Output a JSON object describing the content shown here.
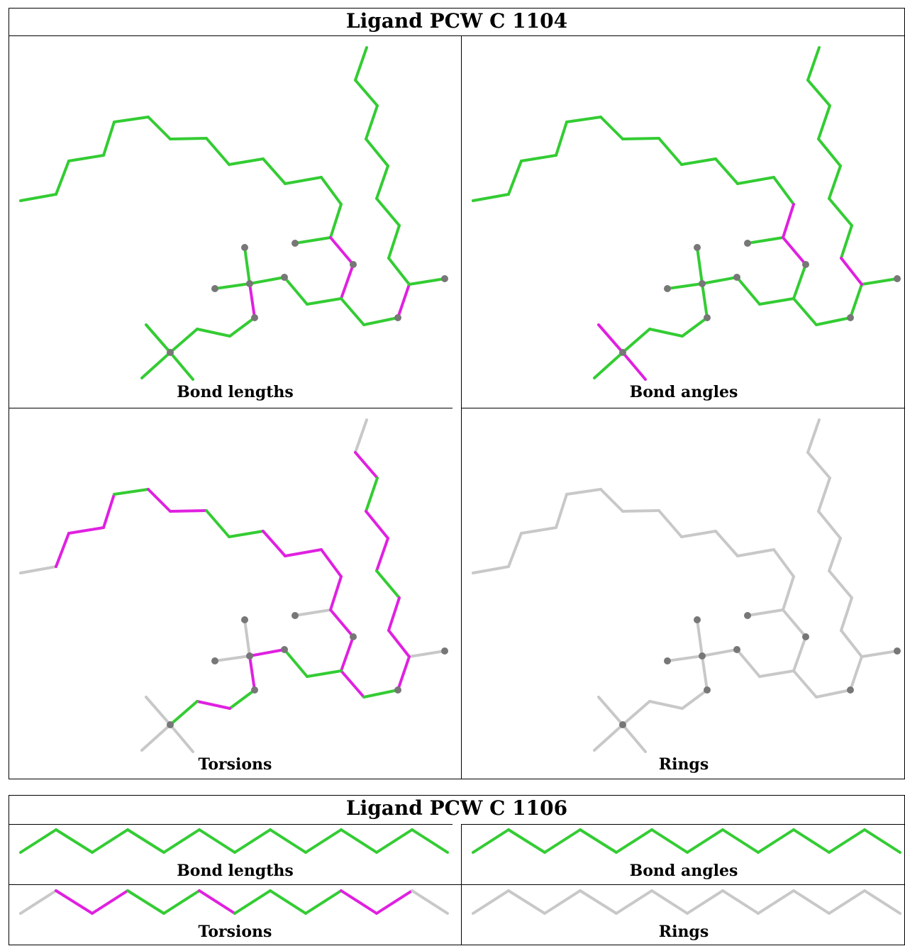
{
  "colors": {
    "ok": "#33cc33",
    "outlier": "#e020e0",
    "na": "#c8c8c8",
    "atom": "#777777"
  },
  "tables": [
    {
      "title": "Ligand PCW C 1104",
      "captions": [
        "Bond lengths",
        "Bond angles",
        "Torsions",
        "Rings"
      ]
    },
    {
      "title": "Ligand PCW C 1106",
      "captions": [
        "Bond lengths",
        "Bond angles",
        "Torsions",
        "Rings"
      ]
    }
  ]
}
